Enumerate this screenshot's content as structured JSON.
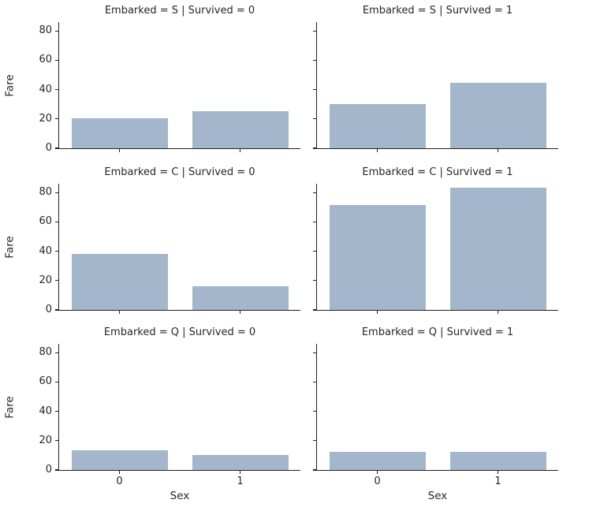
{
  "figure": {
    "background_color": "#ffffff",
    "text_color": "#262626",
    "spine_color": "#222222"
  },
  "chart_data": {
    "type": "bar",
    "facet_row_variable": "Embarked",
    "facet_row_values": [
      "S",
      "C",
      "Q"
    ],
    "facet_col_variable": "Survived",
    "facet_col_values": [
      "0",
      "1"
    ],
    "categories": [
      "0",
      "1"
    ],
    "xlabel": "Sex",
    "ylabel": "Fare",
    "yticks": [
      0,
      20,
      40,
      60,
      80
    ],
    "ylim": [
      0,
      86
    ],
    "grid": false,
    "legend": false,
    "bar_color": "#a4b6cc",
    "facets": [
      {
        "title": "Embarked = S | Survived = 0",
        "row": 0,
        "col": 0,
        "values": [
          20.2,
          25.4
        ]
      },
      {
        "title": "Embarked = S | Survived = 1",
        "row": 0,
        "col": 1,
        "values": [
          30.1,
          44.5
        ]
      },
      {
        "title": "Embarked = C | Survived = 0",
        "row": 1,
        "col": 0,
        "values": [
          38.0,
          16.1
        ]
      },
      {
        "title": "Embarked = C | Survived = 1",
        "row": 1,
        "col": 1,
        "values": [
          71.5,
          83.5
        ]
      },
      {
        "title": "Embarked = Q | Survived = 0",
        "row": 2,
        "col": 0,
        "values": [
          13.3,
          10.3
        ]
      },
      {
        "title": "Embarked = Q | Survived = 1",
        "row": 2,
        "col": 1,
        "values": [
          12.2,
          12.4
        ]
      }
    ]
  }
}
